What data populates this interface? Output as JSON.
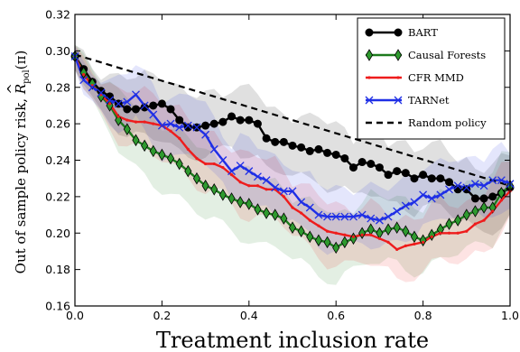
{
  "chart_data": {
    "type": "line",
    "xlabel": "Treatment inclusion rate",
    "ylabel_text": "Out of sample policy risk, ",
    "ylabel_math_r": "R",
    "ylabel_math_hat": "^",
    "ylabel_math_sub": "pol",
    "ylabel_math_arg": "(π)",
    "xlim": [
      0.0,
      1.0
    ],
    "ylim": [
      0.16,
      0.32
    ],
    "xticks": [
      "0.0",
      "0.2",
      "0.4",
      "0.6",
      "0.8",
      "1.0"
    ],
    "yticks": [
      "0.16",
      "0.18",
      "0.20",
      "0.22",
      "0.24",
      "0.26",
      "0.28",
      "0.30",
      "0.32"
    ],
    "grid": false,
    "legend_position": "top-right",
    "series": [
      {
        "name": "BART",
        "color": "#000000",
        "marker": "circle",
        "x": [
          0.0,
          0.02,
          0.04,
          0.06,
          0.08,
          0.1,
          0.12,
          0.14,
          0.16,
          0.18,
          0.2,
          0.22,
          0.24,
          0.26,
          0.28,
          0.3,
          0.32,
          0.34,
          0.36,
          0.38,
          0.4,
          0.42,
          0.44,
          0.46,
          0.48,
          0.5,
          0.52,
          0.54,
          0.56,
          0.58,
          0.6,
          0.62,
          0.64,
          0.66,
          0.68,
          0.7,
          0.72,
          0.74,
          0.76,
          0.78,
          0.8,
          0.82,
          0.84,
          0.86,
          0.88,
          0.9,
          0.92,
          0.94,
          0.96,
          0.98,
          1.0
        ],
        "y": [
          0.297,
          0.29,
          0.283,
          0.278,
          0.275,
          0.271,
          0.268,
          0.268,
          0.269,
          0.27,
          0.271,
          0.268,
          0.262,
          0.258,
          0.258,
          0.259,
          0.26,
          0.261,
          0.264,
          0.262,
          0.262,
          0.26,
          0.252,
          0.25,
          0.25,
          0.248,
          0.247,
          0.245,
          0.246,
          0.244,
          0.243,
          0.241,
          0.236,
          0.239,
          0.238,
          0.236,
          0.232,
          0.234,
          0.233,
          0.23,
          0.232,
          0.23,
          0.23,
          0.228,
          0.224,
          0.224,
          0.219,
          0.219,
          0.22,
          0.222,
          0.225
        ],
        "band": 0.017
      },
      {
        "name": "Causal Forests",
        "color": "#1c7a1c",
        "marker": "diamond",
        "x": [
          0.0,
          0.02,
          0.04,
          0.06,
          0.08,
          0.1,
          0.12,
          0.14,
          0.16,
          0.18,
          0.2,
          0.22,
          0.24,
          0.26,
          0.28,
          0.3,
          0.32,
          0.34,
          0.36,
          0.38,
          0.4,
          0.42,
          0.44,
          0.46,
          0.48,
          0.5,
          0.52,
          0.54,
          0.56,
          0.58,
          0.6,
          0.62,
          0.64,
          0.66,
          0.68,
          0.7,
          0.72,
          0.74,
          0.76,
          0.78,
          0.8,
          0.82,
          0.84,
          0.86,
          0.88,
          0.9,
          0.92,
          0.94,
          0.96,
          0.98,
          1.0
        ],
        "y": [
          0.297,
          0.288,
          0.282,
          0.275,
          0.27,
          0.262,
          0.257,
          0.251,
          0.248,
          0.245,
          0.243,
          0.241,
          0.238,
          0.234,
          0.23,
          0.226,
          0.224,
          0.221,
          0.219,
          0.217,
          0.216,
          0.213,
          0.211,
          0.21,
          0.208,
          0.203,
          0.201,
          0.198,
          0.196,
          0.195,
          0.192,
          0.195,
          0.197,
          0.2,
          0.202,
          0.2,
          0.202,
          0.203,
          0.201,
          0.198,
          0.196,
          0.199,
          0.202,
          0.205,
          0.207,
          0.21,
          0.212,
          0.214,
          0.214,
          0.222,
          0.226
        ],
        "band": 0.018
      },
      {
        "name": "CFR MMD",
        "color": "#ee1c1c",
        "marker": "dot",
        "x": [
          0.0,
          0.02,
          0.04,
          0.06,
          0.08,
          0.1,
          0.12,
          0.14,
          0.16,
          0.18,
          0.2,
          0.22,
          0.24,
          0.26,
          0.28,
          0.3,
          0.32,
          0.34,
          0.36,
          0.38,
          0.4,
          0.42,
          0.44,
          0.46,
          0.48,
          0.5,
          0.52,
          0.54,
          0.56,
          0.58,
          0.6,
          0.62,
          0.64,
          0.66,
          0.68,
          0.7,
          0.72,
          0.74,
          0.76,
          0.78,
          0.8,
          0.82,
          0.84,
          0.86,
          0.88,
          0.9,
          0.92,
          0.94,
          0.96,
          0.98,
          1.0
        ],
        "y": [
          0.297,
          0.287,
          0.281,
          0.276,
          0.271,
          0.264,
          0.262,
          0.261,
          0.261,
          0.26,
          0.259,
          0.256,
          0.252,
          0.246,
          0.241,
          0.238,
          0.238,
          0.236,
          0.232,
          0.228,
          0.226,
          0.226,
          0.224,
          0.224,
          0.22,
          0.214,
          0.211,
          0.207,
          0.204,
          0.201,
          0.2,
          0.199,
          0.198,
          0.199,
          0.199,
          0.197,
          0.195,
          0.191,
          0.193,
          0.194,
          0.195,
          0.198,
          0.2,
          0.2,
          0.2,
          0.201,
          0.205,
          0.207,
          0.212,
          0.218,
          0.223
        ],
        "band": 0.016
      },
      {
        "name": "TARNet",
        "color": "#1f2fe6",
        "marker": "x",
        "x": [
          0.0,
          0.02,
          0.04,
          0.06,
          0.08,
          0.1,
          0.12,
          0.14,
          0.16,
          0.18,
          0.2,
          0.22,
          0.24,
          0.26,
          0.28,
          0.3,
          0.32,
          0.34,
          0.36,
          0.38,
          0.4,
          0.42,
          0.44,
          0.46,
          0.48,
          0.5,
          0.52,
          0.54,
          0.56,
          0.58,
          0.6,
          0.62,
          0.64,
          0.66,
          0.68,
          0.7,
          0.72,
          0.74,
          0.76,
          0.78,
          0.8,
          0.82,
          0.84,
          0.86,
          0.88,
          0.9,
          0.92,
          0.94,
          0.96,
          0.98,
          1.0
        ],
        "y": [
          0.297,
          0.284,
          0.28,
          0.277,
          0.273,
          0.271,
          0.272,
          0.276,
          0.27,
          0.265,
          0.259,
          0.26,
          0.258,
          0.259,
          0.258,
          0.254,
          0.246,
          0.24,
          0.234,
          0.237,
          0.234,
          0.231,
          0.229,
          0.225,
          0.223,
          0.223,
          0.217,
          0.214,
          0.21,
          0.209,
          0.209,
          0.209,
          0.209,
          0.21,
          0.208,
          0.207,
          0.209,
          0.212,
          0.215,
          0.217,
          0.221,
          0.219,
          0.221,
          0.224,
          0.226,
          0.225,
          0.227,
          0.226,
          0.229,
          0.229,
          0.227
        ],
        "band": 0.016
      },
      {
        "name": "Random policy",
        "color": "#000000",
        "marker": "none",
        "dashed": true,
        "x": [
          0.0,
          1.0
        ],
        "y": [
          0.298,
          0.226
        ]
      }
    ]
  }
}
